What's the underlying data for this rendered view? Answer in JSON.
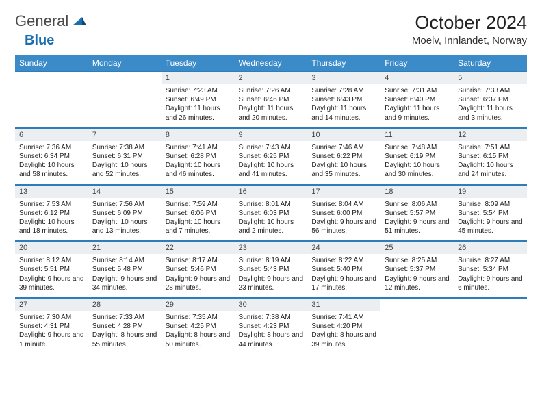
{
  "logo": {
    "word1": "General",
    "word2": "Blue"
  },
  "title": {
    "month": "October 2024",
    "location": "Moelv, Innlandet, Norway"
  },
  "weekdays": [
    "Sunday",
    "Monday",
    "Tuesday",
    "Wednesday",
    "Thursday",
    "Friday",
    "Saturday"
  ],
  "colors": {
    "header": "#3b8bc9",
    "rule": "#2f7db8",
    "daybg": "#eceff1"
  },
  "weeks": [
    [
      null,
      null,
      {
        "n": "1",
        "sr": "7:23 AM",
        "ss": "6:49 PM",
        "dl": "11 hours and 26 minutes."
      },
      {
        "n": "2",
        "sr": "7:26 AM",
        "ss": "6:46 PM",
        "dl": "11 hours and 20 minutes."
      },
      {
        "n": "3",
        "sr": "7:28 AM",
        "ss": "6:43 PM",
        "dl": "11 hours and 14 minutes."
      },
      {
        "n": "4",
        "sr": "7:31 AM",
        "ss": "6:40 PM",
        "dl": "11 hours and 9 minutes."
      },
      {
        "n": "5",
        "sr": "7:33 AM",
        "ss": "6:37 PM",
        "dl": "11 hours and 3 minutes."
      }
    ],
    [
      {
        "n": "6",
        "sr": "7:36 AM",
        "ss": "6:34 PM",
        "dl": "10 hours and 58 minutes."
      },
      {
        "n": "7",
        "sr": "7:38 AM",
        "ss": "6:31 PM",
        "dl": "10 hours and 52 minutes."
      },
      {
        "n": "8",
        "sr": "7:41 AM",
        "ss": "6:28 PM",
        "dl": "10 hours and 46 minutes."
      },
      {
        "n": "9",
        "sr": "7:43 AM",
        "ss": "6:25 PM",
        "dl": "10 hours and 41 minutes."
      },
      {
        "n": "10",
        "sr": "7:46 AM",
        "ss": "6:22 PM",
        "dl": "10 hours and 35 minutes."
      },
      {
        "n": "11",
        "sr": "7:48 AM",
        "ss": "6:19 PM",
        "dl": "10 hours and 30 minutes."
      },
      {
        "n": "12",
        "sr": "7:51 AM",
        "ss": "6:15 PM",
        "dl": "10 hours and 24 minutes."
      }
    ],
    [
      {
        "n": "13",
        "sr": "7:53 AM",
        "ss": "6:12 PM",
        "dl": "10 hours and 18 minutes."
      },
      {
        "n": "14",
        "sr": "7:56 AM",
        "ss": "6:09 PM",
        "dl": "10 hours and 13 minutes."
      },
      {
        "n": "15",
        "sr": "7:59 AM",
        "ss": "6:06 PM",
        "dl": "10 hours and 7 minutes."
      },
      {
        "n": "16",
        "sr": "8:01 AM",
        "ss": "6:03 PM",
        "dl": "10 hours and 2 minutes."
      },
      {
        "n": "17",
        "sr": "8:04 AM",
        "ss": "6:00 PM",
        "dl": "9 hours and 56 minutes."
      },
      {
        "n": "18",
        "sr": "8:06 AM",
        "ss": "5:57 PM",
        "dl": "9 hours and 51 minutes."
      },
      {
        "n": "19",
        "sr": "8:09 AM",
        "ss": "5:54 PM",
        "dl": "9 hours and 45 minutes."
      }
    ],
    [
      {
        "n": "20",
        "sr": "8:12 AM",
        "ss": "5:51 PM",
        "dl": "9 hours and 39 minutes."
      },
      {
        "n": "21",
        "sr": "8:14 AM",
        "ss": "5:48 PM",
        "dl": "9 hours and 34 minutes."
      },
      {
        "n": "22",
        "sr": "8:17 AM",
        "ss": "5:46 PM",
        "dl": "9 hours and 28 minutes."
      },
      {
        "n": "23",
        "sr": "8:19 AM",
        "ss": "5:43 PM",
        "dl": "9 hours and 23 minutes."
      },
      {
        "n": "24",
        "sr": "8:22 AM",
        "ss": "5:40 PM",
        "dl": "9 hours and 17 minutes."
      },
      {
        "n": "25",
        "sr": "8:25 AM",
        "ss": "5:37 PM",
        "dl": "9 hours and 12 minutes."
      },
      {
        "n": "26",
        "sr": "8:27 AM",
        "ss": "5:34 PM",
        "dl": "9 hours and 6 minutes."
      }
    ],
    [
      {
        "n": "27",
        "sr": "7:30 AM",
        "ss": "4:31 PM",
        "dl": "9 hours and 1 minute."
      },
      {
        "n": "28",
        "sr": "7:33 AM",
        "ss": "4:28 PM",
        "dl": "8 hours and 55 minutes."
      },
      {
        "n": "29",
        "sr": "7:35 AM",
        "ss": "4:25 PM",
        "dl": "8 hours and 50 minutes."
      },
      {
        "n": "30",
        "sr": "7:38 AM",
        "ss": "4:23 PM",
        "dl": "8 hours and 44 minutes."
      },
      {
        "n": "31",
        "sr": "7:41 AM",
        "ss": "4:20 PM",
        "dl": "8 hours and 39 minutes."
      },
      null,
      null
    ]
  ]
}
